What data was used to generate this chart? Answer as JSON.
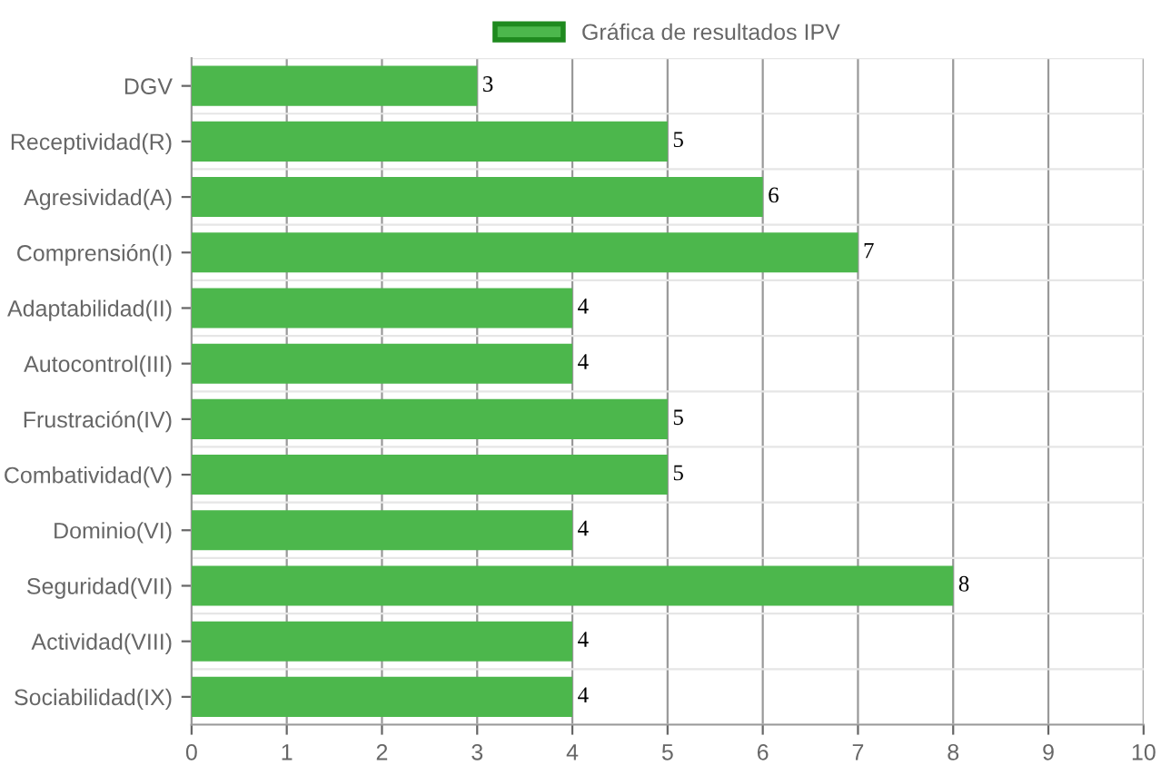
{
  "chart_data": {
    "type": "bar",
    "orientation": "horizontal",
    "categories": [
      "DGV",
      "Receptividad(R)",
      "Agresividad(A)",
      "Comprensión(I)",
      "Adaptabilidad(II)",
      "Autocontrol(III)",
      "Frustración(IV)",
      "Combatividad(V)",
      "Dominio(VI)",
      "Seguridad(VII)",
      "Actividad(VIII)",
      "Sociabilidad(IX)"
    ],
    "series": [
      {
        "name": "Gráfica de resultados IPV",
        "color": "#4cb74c",
        "values": [
          3,
          5,
          6,
          7,
          4,
          4,
          5,
          5,
          4,
          8,
          4,
          4
        ]
      }
    ],
    "xlim": [
      0,
      10
    ],
    "xticks": [
      0,
      1,
      2,
      3,
      4,
      5,
      6,
      7,
      8,
      9,
      10
    ],
    "grid": true,
    "legend": "top",
    "data_labels": true
  }
}
